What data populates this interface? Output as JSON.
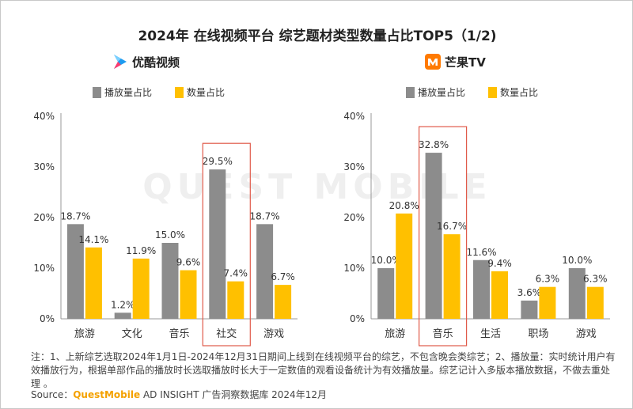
{
  "title": "2024年 在线视频平台 综艺题材类型数量占比TOP5（1/2)",
  "watermark": "QUEST MOBILE",
  "colors": {
    "play": "#8c8c8c",
    "count": "#ffc000",
    "highlight": "#e05a4a",
    "youku_logo": "#1e9bf0",
    "mango_logo": "#ff7a00"
  },
  "chart_data": [
    {
      "type": "bar",
      "brand": "优酷视频",
      "brand_icon": "youku-logo-icon",
      "categories": [
        "旅游",
        "文化",
        "音乐",
        "社交",
        "游戏"
      ],
      "series": [
        {
          "name": "播放量占比",
          "values": [
            18.7,
            1.2,
            15.0,
            29.5,
            18.7
          ],
          "labels": [
            "18.7%",
            "1.2%",
            "15.0%",
            "29.5%",
            "18.7%"
          ]
        },
        {
          "name": "数量占比",
          "values": [
            14.1,
            11.9,
            9.6,
            7.4,
            6.7
          ],
          "labels": [
            "14.1%",
            "11.9%",
            "9.6%",
            "7.4%",
            "6.7%"
          ]
        }
      ],
      "ylim": [
        0,
        40
      ],
      "yticks": [
        "0%",
        "10%",
        "20%",
        "30%",
        "40%"
      ],
      "highlight_category": "社交",
      "legend_position": "top-left"
    },
    {
      "type": "bar",
      "brand": "芒果TV",
      "brand_icon": "mango-tv-logo-icon",
      "categories": [
        "旅游",
        "音乐",
        "生活",
        "职场",
        "游戏"
      ],
      "series": [
        {
          "name": "播放量占比",
          "values": [
            10.0,
            32.8,
            11.6,
            3.6,
            10.0
          ],
          "labels": [
            "10.0%",
            "32.8%",
            "11.6%",
            "3.6%",
            "10.0%"
          ]
        },
        {
          "name": "数量占比",
          "values": [
            20.8,
            16.7,
            9.4,
            6.3,
            6.3
          ],
          "labels": [
            "20.8%",
            "16.7%",
            "9.4%",
            "6.3%",
            "6.3%"
          ]
        }
      ],
      "ylim": [
        0,
        40
      ],
      "yticks": [
        "0%",
        "10%",
        "20%",
        "30%",
        "40%"
      ],
      "highlight_category": "音乐",
      "legend_position": "top-left"
    }
  ],
  "note": "注：1、上新综艺选取2024年1月1日-2024年12月31日期间上线到在线视频平台的综艺，不包含晚会类综艺；2、播放量：实时统计用户有效播放行为，根据单部作品的播放时长选取播放时长大于一定数值的观看设备统计为有效播放量。综艺记计入多版本播放数据，不做去重处理 。",
  "source": {
    "prefix": "Source：",
    "brand": "QuestMobile",
    "suffix": " AD INSIGHT 广告洞察数据库 2024年12月"
  }
}
